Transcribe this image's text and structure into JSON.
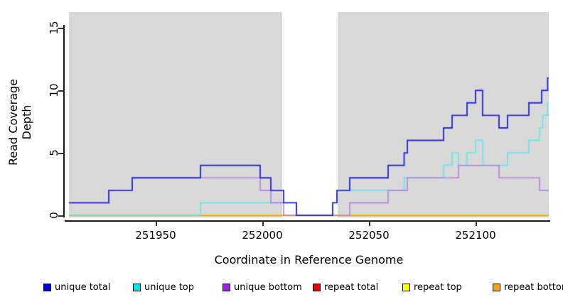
{
  "axes": {
    "x_title": "Coordinate in Reference Genome",
    "y_title": "Read Coverage Depth",
    "x_tick_labels": [
      "251950",
      "252000",
      "252050",
      "252100"
    ],
    "y_tick_labels": [
      "0",
      "5",
      "10",
      "15"
    ]
  },
  "legend": {
    "items": [
      {
        "label": "unique total",
        "color": "#0000EE"
      },
      {
        "label": "unique top",
        "color": "#00E6E6"
      },
      {
        "label": "unique bottom",
        "color": "#A020F0"
      },
      {
        "label": "repeat total",
        "color": "#EE0000"
      },
      {
        "label": "repeat top",
        "color": "#FFFF00"
      },
      {
        "label": "repeat bottom",
        "color": "#FFA500"
      }
    ]
  },
  "chart_data": {
    "type": "line",
    "line_style": "step",
    "xlabel": "Coordinate in Reference Genome",
    "ylabel": "Read Coverage Depth",
    "xlim": [
      251909.3,
      252134.3
    ],
    "ylim": [
      0,
      16.3
    ],
    "x_ticks": [
      251950,
      252000,
      252050,
      252100
    ],
    "y_ticks": [
      0,
      5,
      10,
      15
    ],
    "panel_background": "#d9d9d9",
    "grid": "off",
    "legend_position": "bottom",
    "masked_region": {
      "from": 252009.3,
      "to": 252035.3,
      "color": "#ffffff"
    },
    "series": [
      {
        "name": "repeat total",
        "color": "#E8102A",
        "start_value": 0,
        "steps": []
      },
      {
        "name": "repeat top",
        "color": "#F2F200",
        "start_value": 0,
        "steps": []
      },
      {
        "name": "repeat bottom",
        "color": "#FF9D00",
        "start_value": 0,
        "steps": []
      },
      {
        "name": "unique top",
        "color": "#5FE6EA",
        "start_value": 0,
        "steps": [
          [
            251971,
            1
          ],
          [
            252016,
            0
          ],
          [
            252033,
            1
          ],
          [
            252035,
            2
          ],
          [
            252066.5,
            3
          ],
          [
            252085,
            4
          ],
          [
            252089,
            5
          ],
          [
            252092,
            4
          ],
          [
            252096,
            5
          ],
          [
            252100,
            6
          ],
          [
            252103.3,
            4
          ],
          [
            252115,
            5
          ],
          [
            252125,
            6
          ],
          [
            252130,
            7
          ],
          [
            252131.5,
            8
          ],
          [
            252133.8,
            9
          ]
        ]
      },
      {
        "name": "unique bottom",
        "color": "#B27FDE",
        "start_value": 1,
        "steps": [
          [
            251928,
            2
          ],
          [
            251939,
            3
          ],
          [
            251999,
            2
          ],
          [
            252004,
            1
          ],
          [
            252010,
            0
          ],
          [
            252041,
            1
          ],
          [
            252059,
            2
          ],
          [
            252068,
            3
          ],
          [
            252092,
            4
          ],
          [
            252111,
            3
          ],
          [
            252130,
            2
          ]
        ]
      },
      {
        "name": "unique total",
        "color": "#2A2AD8",
        "start_value": 1,
        "steps": [
          [
            251928,
            2
          ],
          [
            251939,
            3
          ],
          [
            251971,
            4
          ],
          [
            251999,
            3
          ],
          [
            252004,
            2
          ],
          [
            252010,
            1
          ],
          [
            252016,
            0
          ],
          [
            252033,
            1
          ],
          [
            252035,
            2
          ],
          [
            252041,
            3
          ],
          [
            252059,
            4
          ],
          [
            252066.5,
            5
          ],
          [
            252068,
            6
          ],
          [
            252085,
            7
          ],
          [
            252089,
            8
          ],
          [
            252096,
            9
          ],
          [
            252100,
            10
          ],
          [
            252103.3,
            8
          ],
          [
            252111,
            7
          ],
          [
            252115,
            8
          ],
          [
            252125,
            9
          ],
          [
            252131,
            10
          ],
          [
            252133.8,
            11
          ]
        ]
      }
    ]
  }
}
